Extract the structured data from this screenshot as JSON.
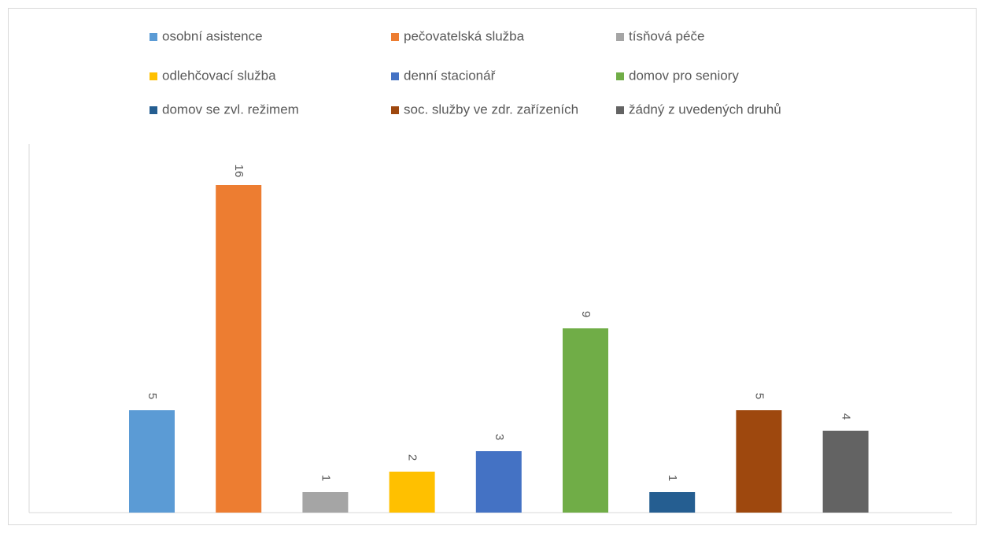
{
  "chart_data": {
    "type": "bar",
    "series": [
      {
        "name": "osobní asistence",
        "color": "#5b9bd5",
        "values": [
          5
        ]
      },
      {
        "name": "pečovatelská služba",
        "color": "#ed7d31",
        "values": [
          16
        ]
      },
      {
        "name": "tísňová péče",
        "color": "#a5a5a5",
        "values": [
          1
        ]
      },
      {
        "name": "odlehčovací služba",
        "color": "#ffc000",
        "values": [
          2
        ]
      },
      {
        "name": "denní stacionář",
        "color": "#4472c4",
        "values": [
          3
        ]
      },
      {
        "name": "domov pro seniory",
        "color": "#70ad47",
        "values": [
          9
        ]
      },
      {
        "name": "domov se zvl. režimem",
        "color": "#255e91",
        "values": [
          1
        ]
      },
      {
        "name": "soc. služby ve zdr. zařízeních",
        "color": "#9e480e",
        "values": [
          5
        ]
      },
      {
        "name": "žádný z uvedených druhů",
        "color": "#636363",
        "values": [
          4
        ]
      }
    ],
    "ylim": [
      0,
      18
    ],
    "legend": "top"
  }
}
